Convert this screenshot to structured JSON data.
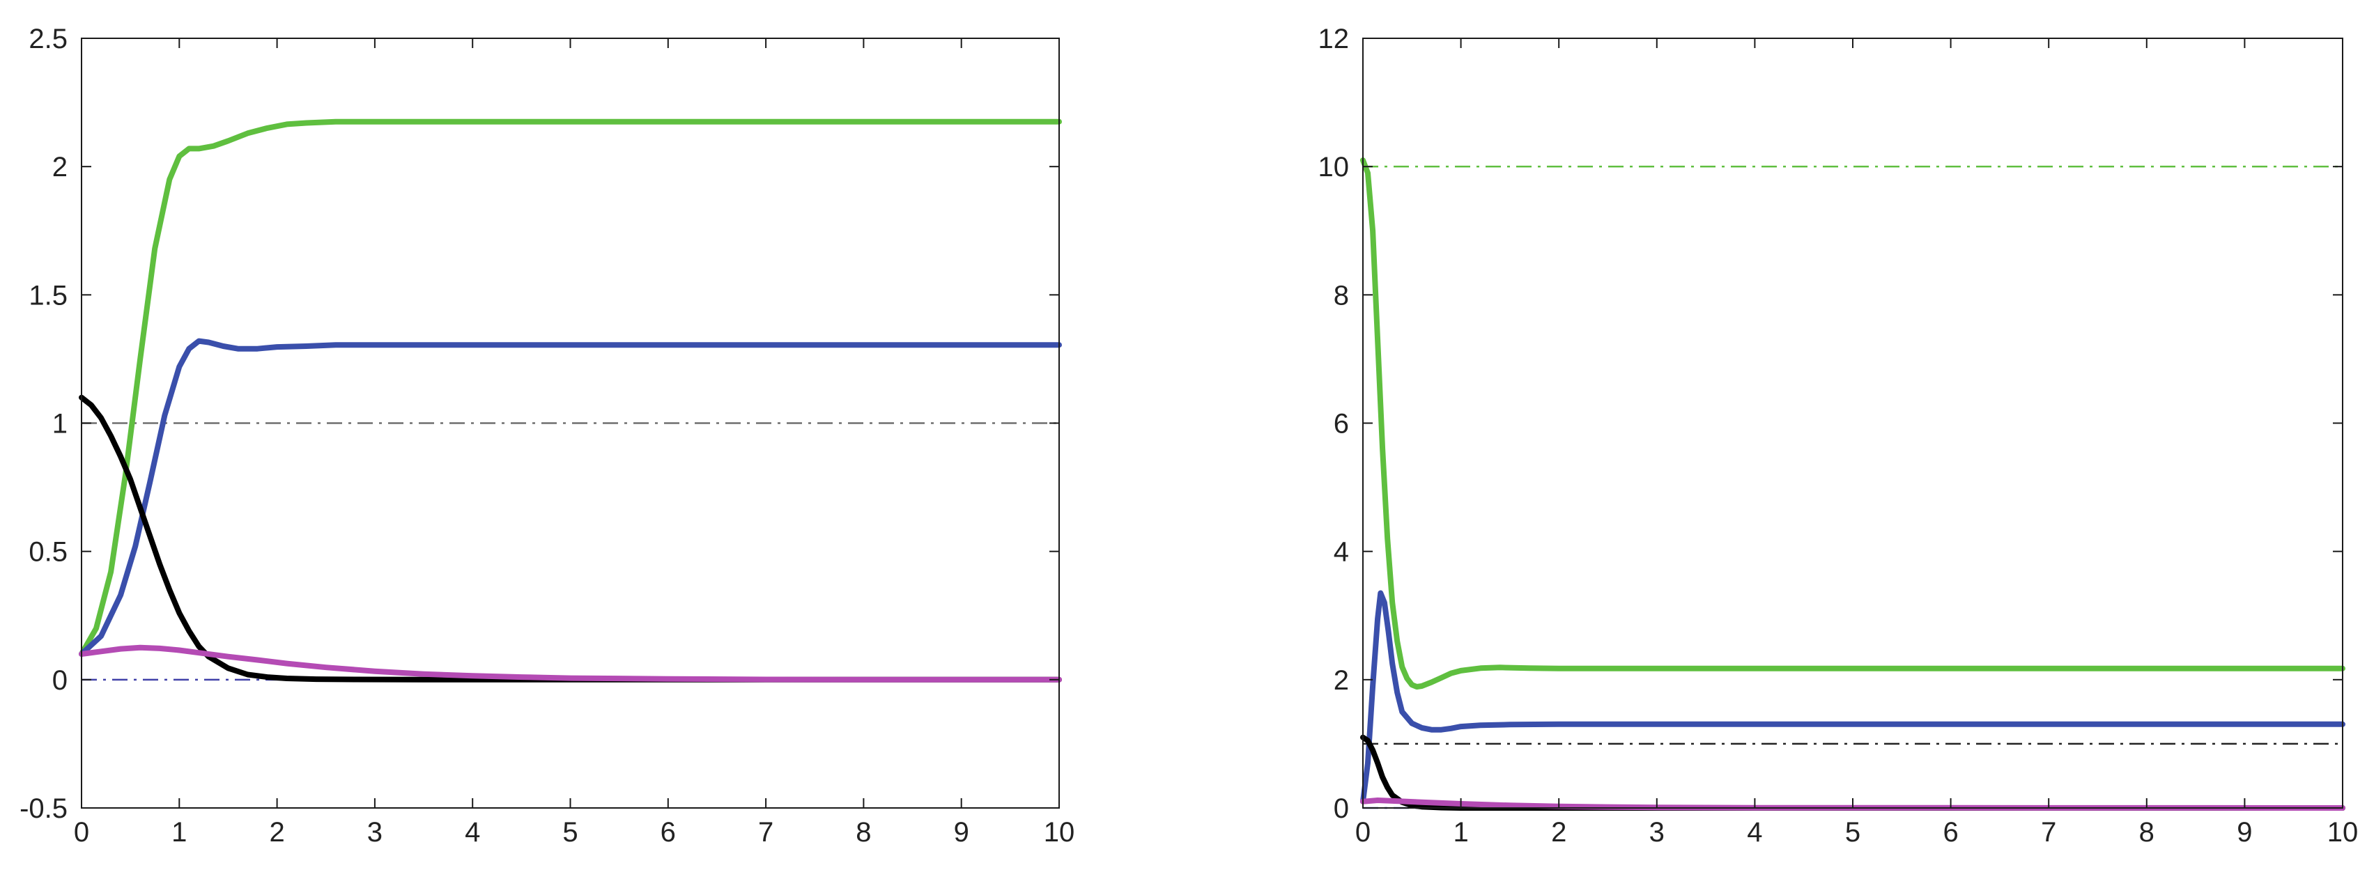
{
  "chart_data": [
    {
      "type": "line",
      "xlim": [
        0,
        10
      ],
      "ylim": [
        -0.5,
        2.5
      ],
      "xticks": [
        0,
        1,
        2,
        3,
        4,
        5,
        6,
        7,
        8,
        9,
        10
      ],
      "yticks": [
        -0.5,
        0,
        0.5,
        1,
        1.5,
        2,
        2.5
      ],
      "xtick_labels": [
        "0",
        "1",
        "2",
        "3",
        "4",
        "5",
        "6",
        "7",
        "8",
        "9",
        "10"
      ],
      "ytick_labels": [
        "-0.5",
        "0",
        "0.5",
        "1",
        "1.5",
        "2",
        "2.5"
      ],
      "grid": false,
      "reference_lines": [
        {
          "y": 1,
          "color": "#6e6e6e",
          "style": "dash-dot"
        },
        {
          "y": 0,
          "color": "#4040a8",
          "style": "dash-dot"
        }
      ],
      "series": [
        {
          "color": "#5fbf3f",
          "x": [
            0,
            0.15,
            0.3,
            0.45,
            0.6,
            0.75,
            0.9,
            1.0,
            1.1,
            1.2,
            1.35,
            1.5,
            1.7,
            1.9,
            2.1,
            2.3,
            2.6,
            3.0,
            4.0,
            6.0,
            8.0,
            10.0
          ],
          "y": [
            0.1,
            0.2,
            0.42,
            0.8,
            1.25,
            1.68,
            1.95,
            2.04,
            2.07,
            2.07,
            2.08,
            2.1,
            2.13,
            2.15,
            2.165,
            2.17,
            2.175,
            2.175,
            2.175,
            2.175,
            2.175,
            2.175
          ]
        },
        {
          "color": "#3a4fab",
          "x": [
            0,
            0.2,
            0.4,
            0.55,
            0.7,
            0.85,
            1.0,
            1.1,
            1.2,
            1.3,
            1.45,
            1.6,
            1.8,
            2.0,
            2.3,
            2.6,
            3.0,
            4.0,
            6.0,
            8.0,
            10.0
          ],
          "y": [
            0.1,
            0.17,
            0.33,
            0.52,
            0.77,
            1.03,
            1.22,
            1.29,
            1.32,
            1.315,
            1.3,
            1.29,
            1.29,
            1.297,
            1.3,
            1.305,
            1.305,
            1.305,
            1.305,
            1.305,
            1.305
          ]
        },
        {
          "color": "#000000",
          "x": [
            0,
            0.1,
            0.2,
            0.3,
            0.4,
            0.5,
            0.6,
            0.7,
            0.8,
            0.9,
            1.0,
            1.1,
            1.2,
            1.3,
            1.5,
            1.7,
            1.9,
            2.1,
            2.4,
            2.8,
            3.5,
            5.0,
            10.0
          ],
          "y": [
            1.1,
            1.07,
            1.02,
            0.95,
            0.87,
            0.78,
            0.67,
            0.56,
            0.45,
            0.35,
            0.26,
            0.19,
            0.13,
            0.09,
            0.045,
            0.02,
            0.01,
            0.005,
            0.002,
            0.001,
            0,
            0,
            0
          ]
        },
        {
          "color": "#b44bb4",
          "x": [
            0,
            0.2,
            0.4,
            0.6,
            0.8,
            1.0,
            1.2,
            1.5,
            1.8,
            2.1,
            2.5,
            3.0,
            3.5,
            4.0,
            4.5,
            5.0,
            6.0,
            7.0,
            8.0,
            10.0
          ],
          "y": [
            0.1,
            0.11,
            0.12,
            0.125,
            0.122,
            0.115,
            0.105,
            0.09,
            0.077,
            0.063,
            0.048,
            0.033,
            0.022,
            0.015,
            0.01,
            0.006,
            0.003,
            0.001,
            0,
            0
          ]
        }
      ]
    },
    {
      "type": "line",
      "xlim": [
        0,
        10
      ],
      "ylim": [
        0,
        12
      ],
      "xticks": [
        0,
        1,
        2,
        3,
        4,
        5,
        6,
        7,
        8,
        9,
        10
      ],
      "yticks": [
        0,
        2,
        4,
        6,
        8,
        10,
        12
      ],
      "xtick_labels": [
        "0",
        "1",
        "2",
        "3",
        "4",
        "5",
        "6",
        "7",
        "8",
        "9",
        "10"
      ],
      "ytick_labels": [
        "0",
        "2",
        "4",
        "6",
        "8",
        "10",
        "12"
      ],
      "grid": false,
      "reference_lines": [
        {
          "y": 10,
          "color": "#5fbf3f",
          "style": "dash-dot"
        },
        {
          "y": 1,
          "color": "#222222",
          "style": "dash-dot"
        },
        {
          "y": 0,
          "color": "#4040a8",
          "style": "dash-dot"
        }
      ],
      "series": [
        {
          "color": "#5fbf3f",
          "x": [
            0,
            0.05,
            0.1,
            0.15,
            0.2,
            0.25,
            0.3,
            0.35,
            0.4,
            0.45,
            0.5,
            0.55,
            0.6,
            0.7,
            0.8,
            0.9,
            1.0,
            1.2,
            1.4,
            1.7,
            2.0,
            3.0,
            5.0,
            10.0
          ],
          "y": [
            10.1,
            9.9,
            9.0,
            7.3,
            5.6,
            4.2,
            3.2,
            2.6,
            2.2,
            2.02,
            1.92,
            1.89,
            1.9,
            1.96,
            2.03,
            2.1,
            2.14,
            2.18,
            2.19,
            2.18,
            2.175,
            2.175,
            2.175,
            2.175
          ]
        },
        {
          "color": "#3a4fab",
          "x": [
            0,
            0.05,
            0.1,
            0.15,
            0.18,
            0.22,
            0.26,
            0.3,
            0.35,
            0.4,
            0.5,
            0.6,
            0.7,
            0.8,
            0.9,
            1.0,
            1.2,
            1.5,
            2.0,
            3.0,
            5.0,
            10.0
          ],
          "y": [
            0.1,
            0.7,
            1.9,
            2.95,
            3.35,
            3.2,
            2.75,
            2.25,
            1.8,
            1.5,
            1.32,
            1.25,
            1.22,
            1.22,
            1.24,
            1.27,
            1.29,
            1.3,
            1.305,
            1.305,
            1.305,
            1.305
          ]
        },
        {
          "color": "#000000",
          "x": [
            0,
            0.05,
            0.1,
            0.15,
            0.2,
            0.25,
            0.3,
            0.4,
            0.5,
            0.6,
            0.8,
            1.0,
            1.5,
            2.0,
            10.0
          ],
          "y": [
            1.1,
            1.05,
            0.9,
            0.7,
            0.48,
            0.32,
            0.2,
            0.09,
            0.04,
            0.02,
            0.005,
            0,
            0,
            0,
            0
          ]
        },
        {
          "color": "#b44bb4",
          "x": [
            0,
            0.15,
            0.3,
            0.6,
            1.0,
            1.5,
            2.0,
            2.5,
            3.0,
            4.0,
            10.0
          ],
          "y": [
            0.1,
            0.12,
            0.11,
            0.09,
            0.065,
            0.04,
            0.025,
            0.015,
            0.008,
            0.003,
            0
          ]
        }
      ]
    }
  ]
}
